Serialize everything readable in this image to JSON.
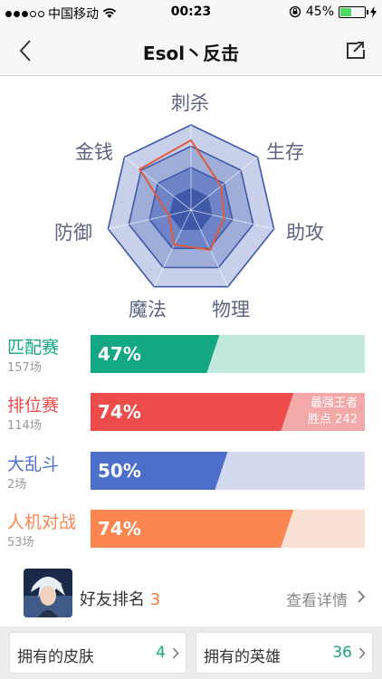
{
  "status_bar": {
    "carrier": "中国移动",
    "time": "00:23",
    "battery": "45%",
    "battery_level": 0.45
  },
  "nav": {
    "title": "Esol丶反击",
    "back_icon": "chevron-left-icon",
    "share_icon": "share-icon"
  },
  "radar": {
    "axes": [
      "刺杀",
      "生存",
      "助攻",
      "物理",
      "魔法",
      "防御",
      "金钱"
    ],
    "values": [
      0.82,
      0.45,
      0.4,
      0.52,
      0.45,
      0.27,
      0.77
    ],
    "line_color": "#e05a3c"
  },
  "stats": [
    {
      "name": "匹配赛",
      "count": "157场",
      "percent_label": "47%",
      "percent": 0.47,
      "color": "#14a783",
      "track": "#c3e9de",
      "extra": []
    },
    {
      "name": "排位赛",
      "count": "114场",
      "percent_label": "74%",
      "percent": 0.74,
      "color": "#ee4b4b",
      "track": "#f4a9a9",
      "extra": [
        "最强王者",
        "胜点 242"
      ]
    },
    {
      "name": "大乱斗",
      "count": "2场",
      "percent_label": "50%",
      "percent": 0.5,
      "color": "#4c6fcc",
      "track": "#d3d9ee",
      "extra": []
    },
    {
      "name": "人机对战",
      "count": "53场",
      "percent_label": "74%",
      "percent": 0.74,
      "color": "#fb8650",
      "track": "#f8e0d4",
      "extra": []
    }
  ],
  "friend": {
    "label": "好友排名",
    "rank": "3",
    "detail": "查看详情"
  },
  "cards": [
    {
      "label": "拥有的皮肤",
      "value": "4",
      "color": "#14a783"
    },
    {
      "label": "拥有的英雄",
      "value": "36",
      "color": "#14a783"
    }
  ]
}
